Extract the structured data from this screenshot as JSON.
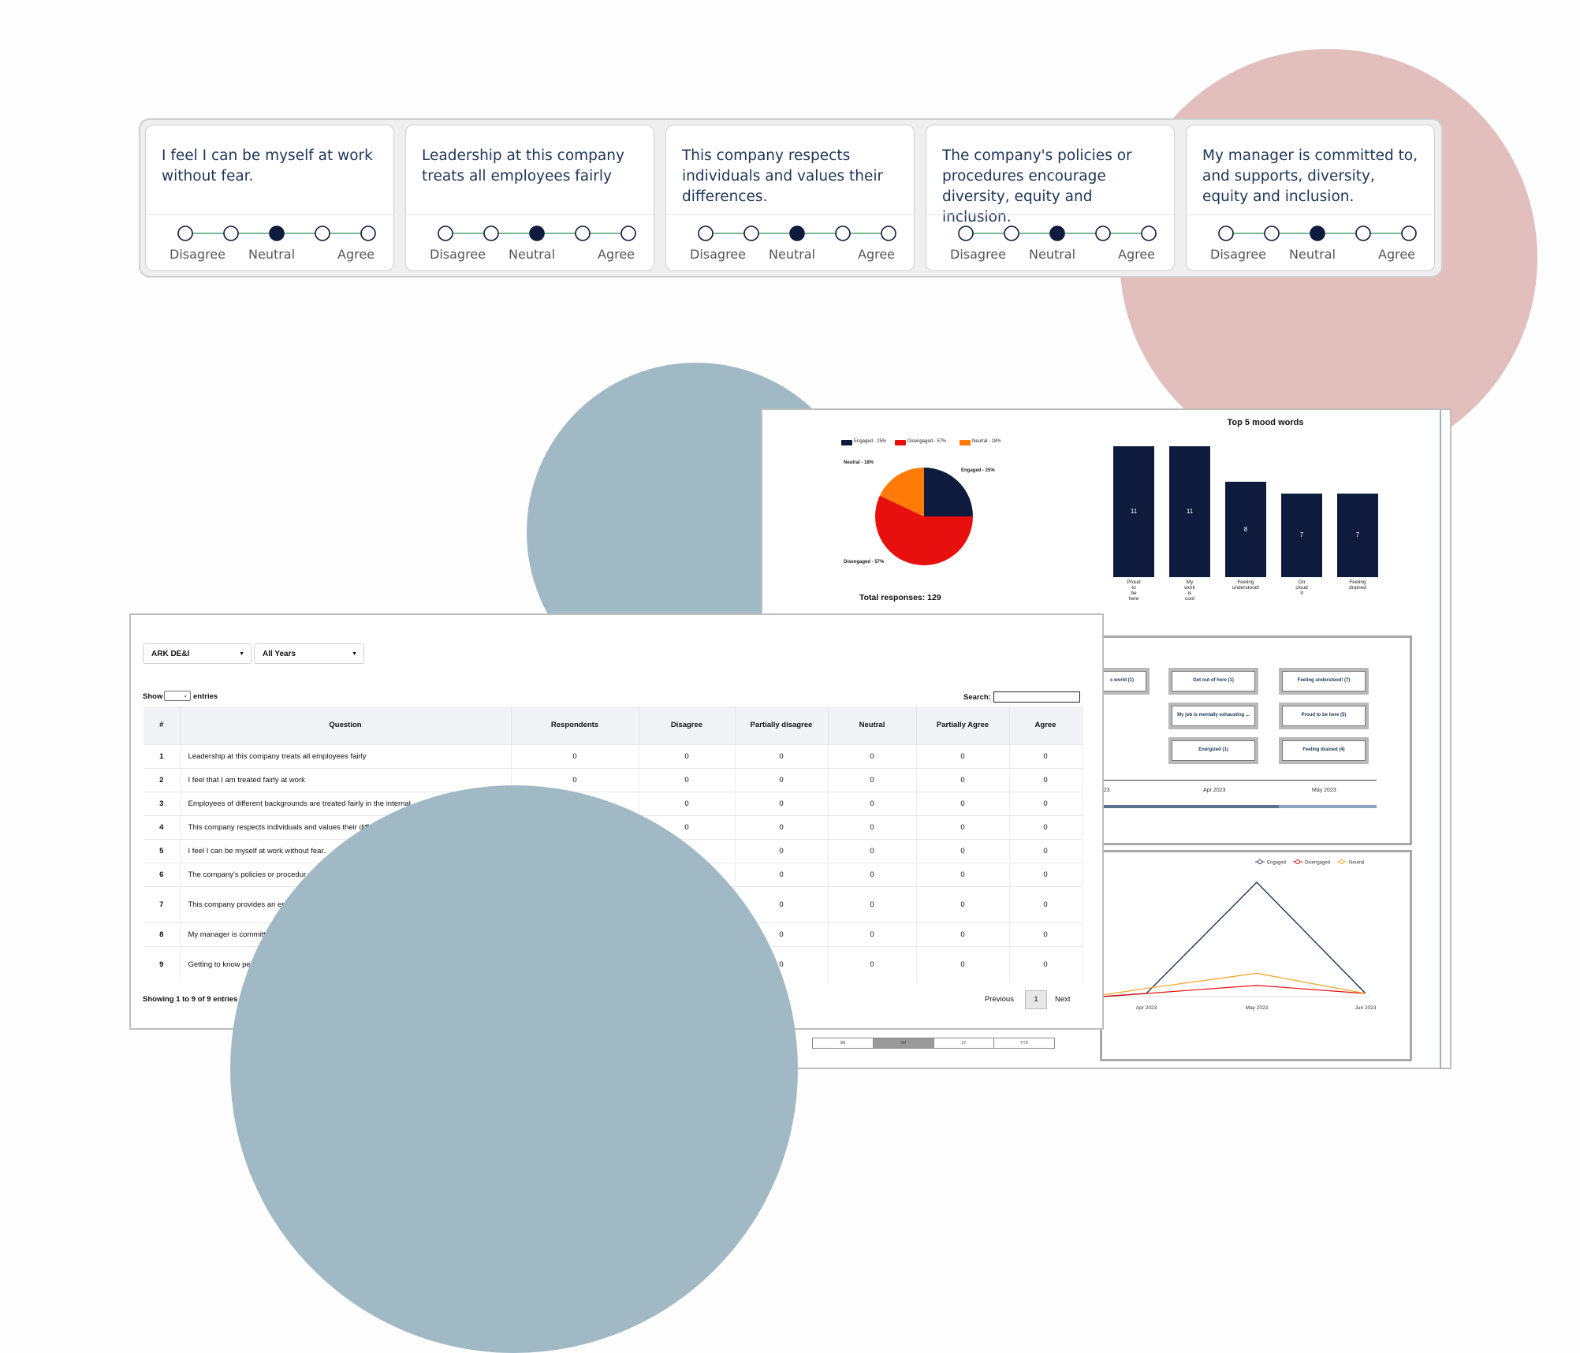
{
  "likert": {
    "scale_labels": {
      "left": "Disagree",
      "mid": "Neutral",
      "right": "Agree"
    },
    "cards": [
      {
        "question": "I feel I can be myself at work without fear.",
        "selected": 3
      },
      {
        "question": "Leadership at this company treats all employees fairly",
        "selected": 3
      },
      {
        "question": "This company respects individuals and values their differences.",
        "selected": 3
      },
      {
        "question": "The company's policies or procedures encourage diversity, equity and inclusion.",
        "selected": 3
      },
      {
        "question": "My manager is committed to, and supports, diversity, equity and inclusion.",
        "selected": 3
      }
    ]
  },
  "dashboard": {
    "pie": {
      "legend": [
        "Engaged - 25%",
        "Disengaged - 57%",
        "Neutral - 18%"
      ],
      "labels": {
        "engaged": "Engaged - 25%",
        "disengaged": "Disengaged - 57%",
        "neutral": "Neutral - 18%"
      },
      "total": "Total responses: 129",
      "colors": {
        "engaged": "#0f1b3d",
        "disengaged": "#e8100f",
        "neutral": "#ff7a06"
      }
    },
    "mood_title": "Top 5 mood words",
    "mood_words": {
      "buttons": [
        "s world (1)",
        "Get out of here (1)",
        "Feeling understood! (7)",
        "My job is mentally exhausting ...",
        "Proud to be here (5)",
        "Energized (1)",
        "Feeling drained (4)"
      ],
      "months": [
        "023",
        "Apr 2023",
        "May 2023"
      ]
    },
    "trend": {
      "legend": [
        "Engaged",
        "Disengaged",
        "Neutral"
      ],
      "x_labels": [
        "Apr 2023",
        "May 2023",
        "Jun 2023"
      ],
      "colors": {
        "engaged": "#1d3557",
        "disengaged": "#e8100f",
        "neutral": "#f4a21f"
      }
    },
    "range_buttons": [
      "3M",
      "6M",
      "1Y",
      "YTD"
    ]
  },
  "chart_data": [
    {
      "type": "pie",
      "labels": [
        "Engaged",
        "Disengaged",
        "Neutral"
      ],
      "values": [
        25,
        57,
        18
      ],
      "legend": [
        "Engaged - 25%",
        "Disengaged - 57%",
        "Neutral - 18%"
      ],
      "title": ""
    },
    {
      "type": "bar",
      "title": "Top 5 mood words",
      "categories": [
        "Proud to be here",
        "My work is cool",
        "Feeling understood!",
        "On cloud 9",
        "Feeling drained"
      ],
      "values": [
        11,
        11,
        8,
        7,
        7
      ],
      "ylim": [
        0,
        11
      ]
    },
    {
      "type": "line",
      "x": [
        "Apr 2023",
        "May 2023",
        "Jun 2023"
      ],
      "series": [
        {
          "name": "Engaged",
          "values": [
            0,
            11,
            0
          ]
        },
        {
          "name": "Disengaged",
          "values": [
            0,
            0.8,
            0
          ]
        },
        {
          "name": "Neutral",
          "values": [
            0.5,
            2,
            0
          ]
        }
      ],
      "legend": [
        "Engaged",
        "Disengaged",
        "Neutral"
      ]
    }
  ],
  "table": {
    "filters": {
      "group": "ARK DE&I",
      "years": "All Years"
    },
    "show_label": "Show",
    "entries_label": "entries",
    "search_label": "Search:",
    "columns": [
      "#",
      "Question",
      "Respondents",
      "Disagree",
      "Partially disagree",
      "Neutral",
      "Partially Agree",
      "Agree"
    ],
    "rows": [
      [
        "1",
        "Leadership at this company treats all employees fairly",
        "0",
        "0",
        "0",
        "0",
        "0",
        "0"
      ],
      [
        "2",
        "I feel that I am treated fairly at work",
        "0",
        "0",
        "0",
        "0",
        "0",
        "0"
      ],
      [
        "3",
        "Employees of different backgrounds are treated fairly in the internal",
        "",
        "0",
        "0",
        "0",
        "0",
        "0"
      ],
      [
        "4",
        "This company respects individuals and values their diff",
        "",
        "0",
        "0",
        "0",
        "0",
        "0"
      ],
      [
        "5",
        "I feel I can be myself at work without fear.",
        "",
        "0",
        "0",
        "0",
        "0",
        "0"
      ],
      [
        "6",
        "The company's policies or procedur",
        "",
        "",
        "0",
        "0",
        "0",
        "0"
      ],
      [
        "7",
        "This company provides an env beliefs.",
        "",
        "",
        "0",
        "0",
        "0",
        "0"
      ],
      [
        "8",
        "My manager is committ",
        "",
        "",
        "0",
        "0",
        "0",
        "0"
      ],
      [
        "9",
        "Getting to know pe company.",
        "",
        "",
        "0",
        "0",
        "0",
        "0"
      ]
    ],
    "showing": "Showing 1 to 9 of 9 entries",
    "pagination": {
      "prev": "Previous",
      "page": "1",
      "next": "Next"
    }
  }
}
